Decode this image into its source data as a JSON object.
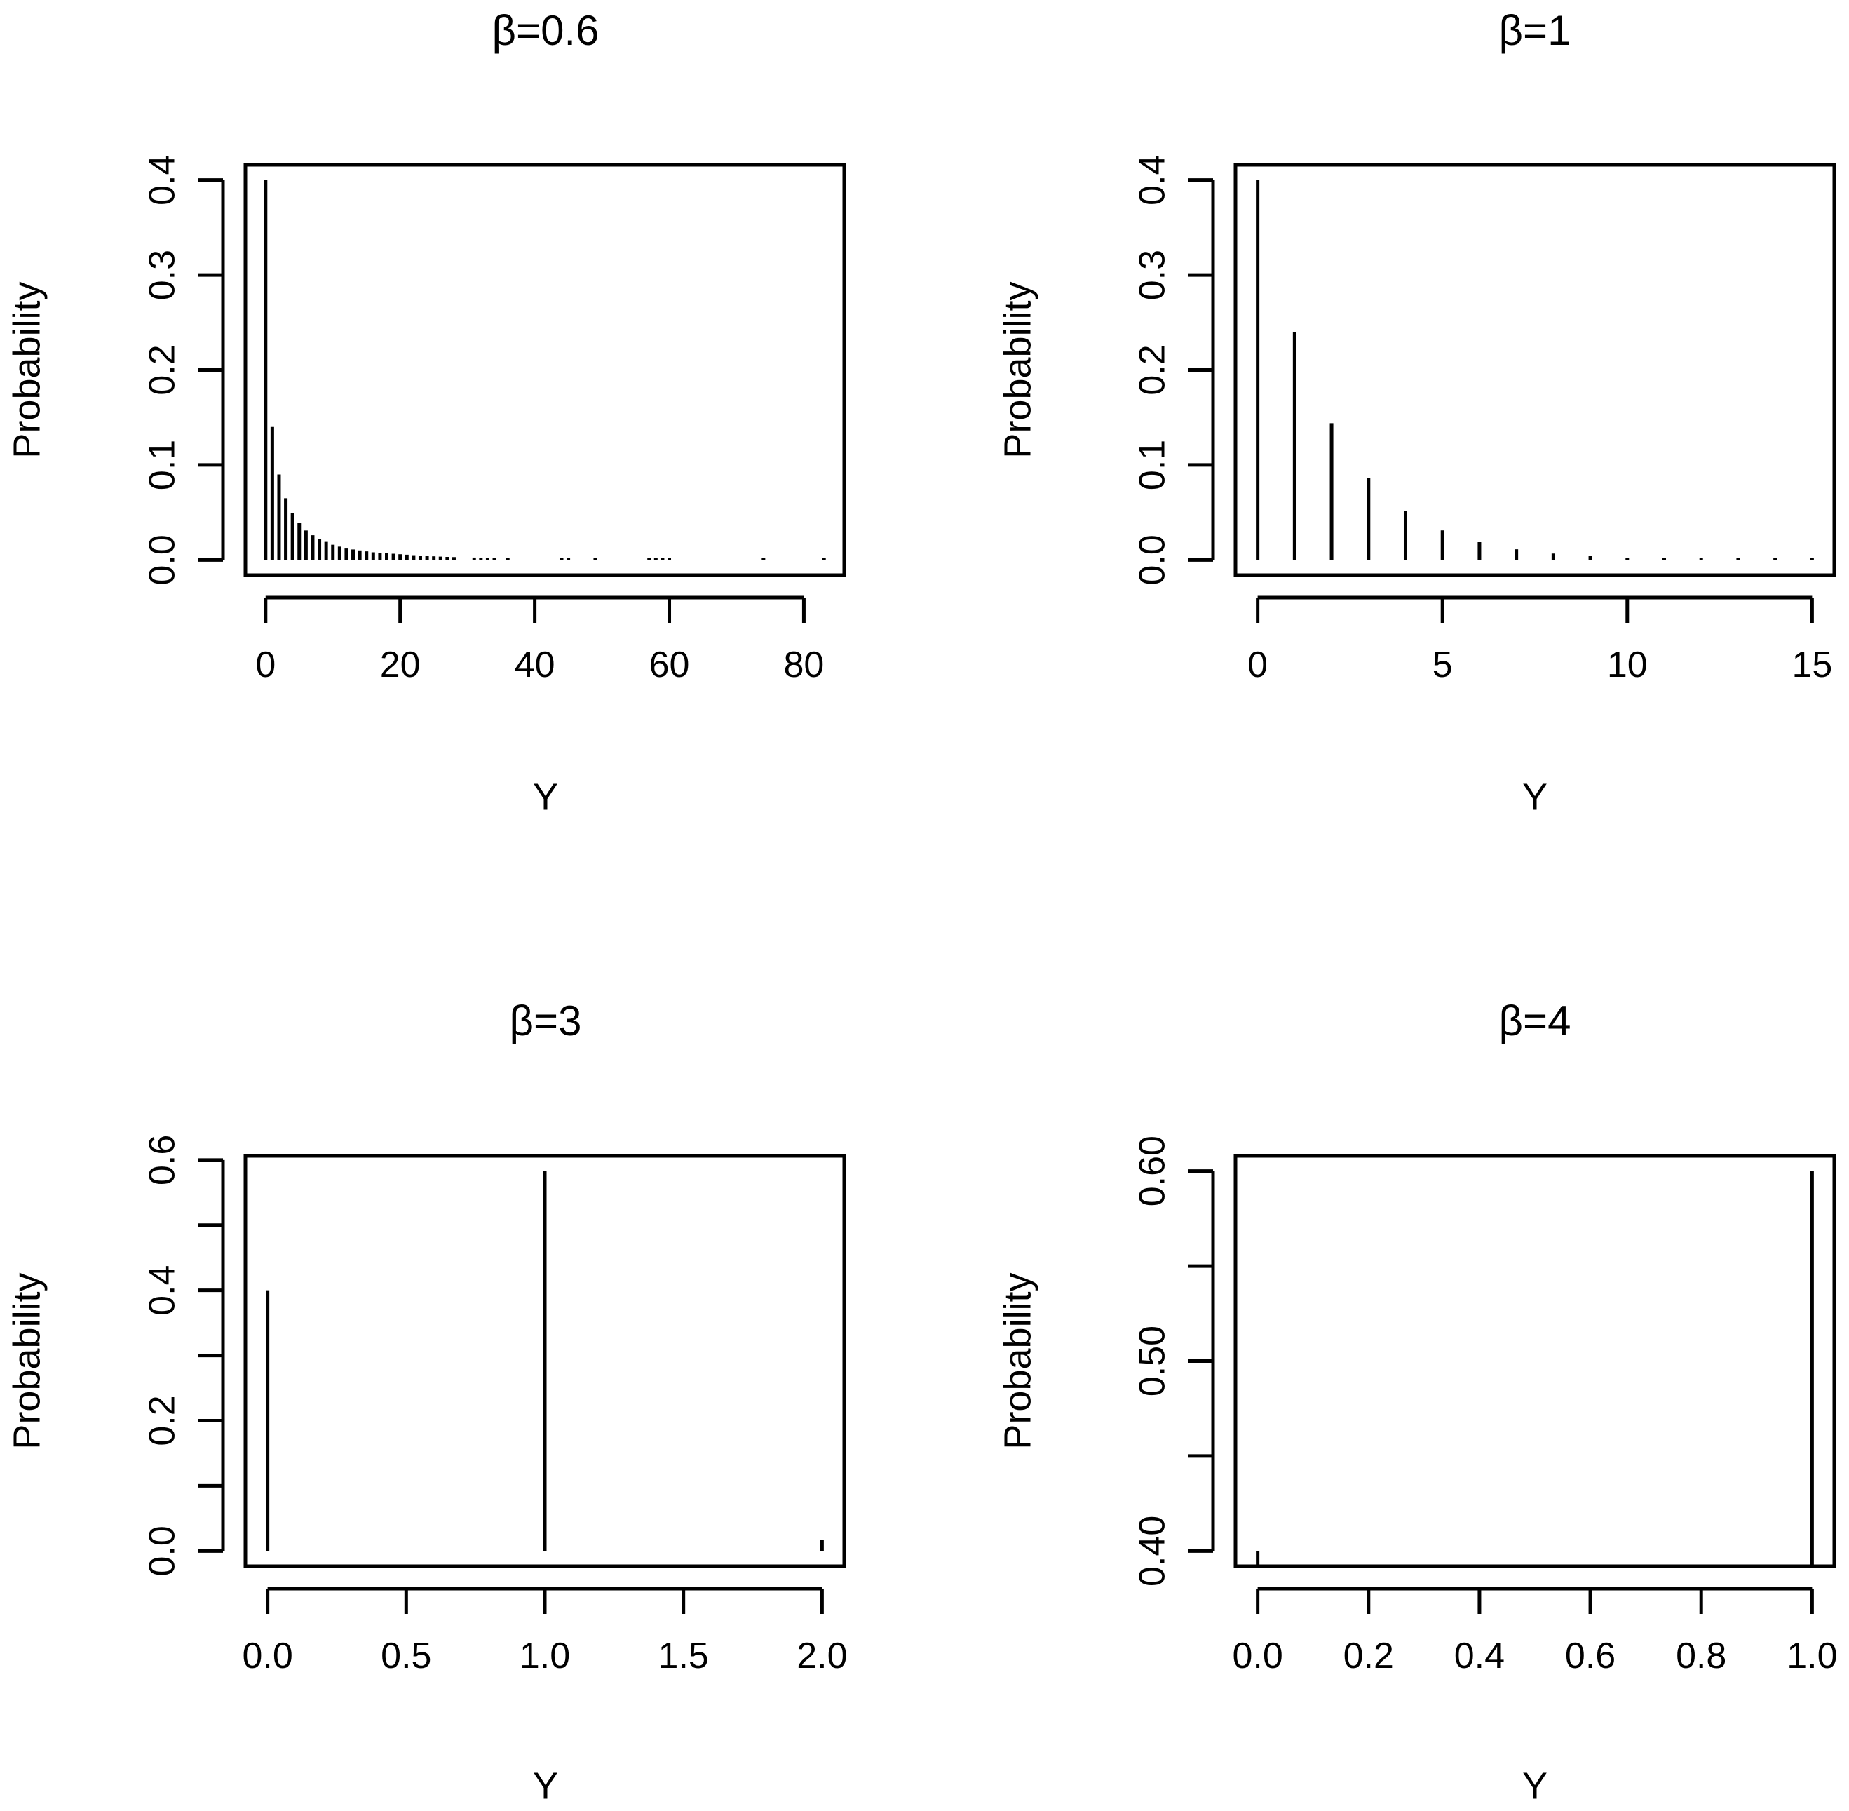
{
  "chart_data": [
    {
      "type": "bar",
      "title": "β=0.6",
      "xlabel": "Y",
      "ylabel": "Probability",
      "xlim": [
        -3,
        86
      ],
      "ylim": [
        -0.016,
        0.416
      ],
      "xticks": [
        0,
        20,
        40,
        60,
        80
      ],
      "xtick_labels": [
        "0",
        "20",
        "40",
        "60",
        "80"
      ],
      "yticks": [
        0.0,
        0.1,
        0.2,
        0.3,
        0.4
      ],
      "ytick_labels": [
        "0.0",
        "0.1",
        "0.2",
        "0.3",
        "0.4"
      ],
      "x": [
        0,
        1,
        2,
        3,
        4,
        5,
        6,
        7,
        8,
        9,
        10,
        11,
        12,
        13,
        14,
        15,
        16,
        17,
        18,
        19,
        20,
        21,
        22,
        23,
        24,
        25,
        26,
        27,
        28,
        31,
        32,
        33,
        34,
        36,
        44,
        45,
        49,
        57,
        58,
        59,
        60,
        74,
        83
      ],
      "y": [
        0.4,
        0.14,
        0.09,
        0.065,
        0.049,
        0.039,
        0.031,
        0.026,
        0.022,
        0.019,
        0.016,
        0.014,
        0.012,
        0.011,
        0.01,
        0.009,
        0.008,
        0.0075,
        0.007,
        0.0065,
        0.006,
        0.0055,
        0.005,
        0.0045,
        0.004,
        0.0038,
        0.0035,
        0.0032,
        0.003,
        0.0025,
        0.0024,
        0.0023,
        0.0022,
        0.002,
        0.0018,
        0.0018,
        0.0016,
        0.0015,
        0.0015,
        0.0015,
        0.0015,
        0.001,
        0.001
      ]
    },
    {
      "type": "bar",
      "title": "β=1",
      "xlabel": "Y",
      "ylabel": "Probability",
      "xlim": [
        -0.6,
        15.6
      ],
      "ylim": [
        -0.016,
        0.416
      ],
      "xticks": [
        0,
        5,
        10,
        15
      ],
      "xtick_labels": [
        "0",
        "5",
        "10",
        "15"
      ],
      "yticks": [
        0.0,
        0.1,
        0.2,
        0.3,
        0.4
      ],
      "ytick_labels": [
        "0.0",
        "0.1",
        "0.2",
        "0.3",
        "0.4"
      ],
      "x": [
        0,
        1,
        2,
        3,
        4,
        5,
        6,
        7,
        8,
        9,
        10,
        11,
        12,
        13,
        14,
        15
      ],
      "y": [
        0.4,
        0.24,
        0.144,
        0.0864,
        0.0518,
        0.0311,
        0.0187,
        0.0112,
        0.0067,
        0.004,
        0.0024,
        0.0015,
        0.0009,
        0.0005,
        0.0003,
        0.0002
      ]
    },
    {
      "type": "bar",
      "title": "β=3",
      "xlabel": "Y",
      "ylabel": "Probability",
      "xlim": [
        -0.08,
        2.08
      ],
      "ylim": [
        -0.0233,
        0.6063
      ],
      "xticks": [
        0.0,
        0.5,
        1.0,
        1.5,
        2.0
      ],
      "xtick_labels": [
        "0.0",
        "0.5",
        "1.0",
        "1.5",
        "2.0"
      ],
      "yticks": [
        0.0,
        0.2,
        0.4,
        0.6
      ],
      "ytick_labels": [
        "0.0",
        "0.2",
        "0.4",
        "0.6"
      ],
      "minor_yticks": [
        0.1,
        0.3,
        0.5
      ],
      "x": [
        0,
        1,
        2
      ],
      "y": [
        0.4,
        0.583,
        0.017
      ]
    },
    {
      "type": "bar",
      "title": "β=4",
      "xlabel": "Y",
      "ylabel": "Probability",
      "xlim": [
        -0.04,
        1.04
      ],
      "ylim": [
        0.392,
        0.608
      ],
      "xticks": [
        0.0,
        0.2,
        0.4,
        0.6,
        0.8,
        1.0
      ],
      "xtick_labels": [
        "0.0",
        "0.2",
        "0.4",
        "0.6",
        "0.8",
        "1.0"
      ],
      "yticks": [
        0.4,
        0.5,
        0.6
      ],
      "ytick_labels": [
        "0.40",
        "0.50",
        "0.60"
      ],
      "minor_yticks": [
        0.45,
        0.55
      ],
      "x": [
        0,
        1
      ],
      "y": [
        0.4,
        0.6
      ]
    }
  ]
}
